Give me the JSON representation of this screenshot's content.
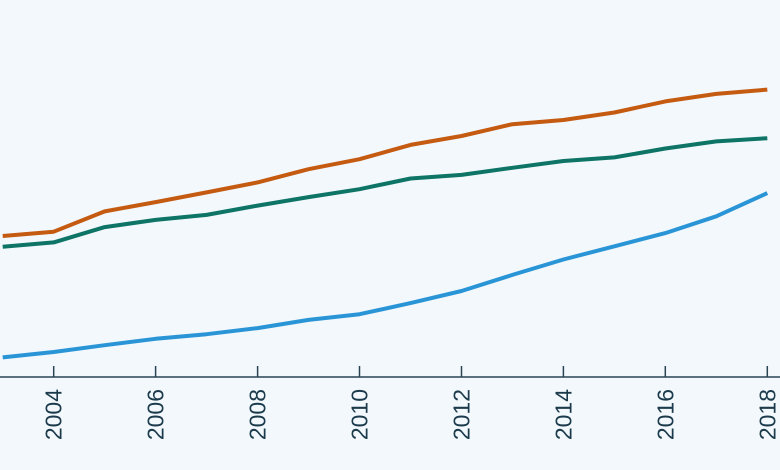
{
  "chart_data": {
    "type": "line",
    "title": "",
    "xlabel": "",
    "ylabel": "",
    "grid": false,
    "legend": "none",
    "xlim": [
      2002.75,
      2018.25
    ],
    "ylim": [
      0,
      100
    ],
    "x_ticks": [
      2004,
      2006,
      2008,
      2010,
      2012,
      2014,
      2016,
      2018
    ],
    "x_tick_labels": [
      "2004",
      "2006",
      "2008",
      "2010",
      "2012",
      "2014",
      "2016",
      "2018"
    ],
    "x": [
      2003,
      2004,
      2005,
      2006,
      2007,
      2008,
      2009,
      2010,
      2011,
      2012,
      2013,
      2014,
      2015,
      2016,
      2017,
      2018
    ],
    "series": [
      {
        "color": "#c55a11",
        "values": [
          39.5,
          40.7,
          46.4,
          49.0,
          51.7,
          54.5,
          58.2,
          61.0,
          65.0,
          67.5,
          70.8,
          72.0,
          74.1,
          77.2,
          79.3,
          80.5
        ]
      },
      {
        "color": "#0d7466",
        "values": [
          36.5,
          37.7,
          42.0,
          44.0,
          45.4,
          48.0,
          50.4,
          52.6,
          55.6,
          56.6,
          58.6,
          60.5,
          61.5,
          64.0,
          66.0,
          66.9
        ]
      },
      {
        "color": "#2a95d6",
        "values": [
          5.5,
          7.0,
          8.9,
          10.7,
          12.0,
          13.7,
          16.0,
          17.6,
          20.7,
          24.1,
          28.6,
          32.9,
          36.6,
          40.3,
          45.0,
          51.5
        ]
      }
    ],
    "background_color": "#f2f8fc",
    "axis_color": "#2b4454",
    "tick_label_color": "#1b3a4b"
  }
}
